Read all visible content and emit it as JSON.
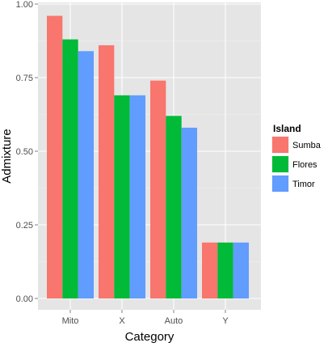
{
  "chart_data": {
    "type": "bar",
    "categories": [
      "Mito",
      "X",
      "Auto",
      "Y"
    ],
    "series": [
      {
        "name": "Sumba",
        "color": "#F8766D",
        "values": [
          0.96,
          0.86,
          0.74,
          0.19
        ]
      },
      {
        "name": "Flores",
        "color": "#00BA38",
        "values": [
          0.88,
          0.69,
          0.62,
          0.19
        ]
      },
      {
        "name": "Timor",
        "color": "#619CFF",
        "values": [
          0.84,
          0.69,
          0.58,
          0.19
        ]
      }
    ],
    "xlabel": "Category",
    "ylabel": "Admixture",
    "ylim": [
      0,
      1.0
    ],
    "yticks": [
      0.0,
      0.25,
      0.5,
      0.75,
      1.0
    ],
    "ytick_labels": [
      "0.00",
      "0.25",
      "0.50",
      "0.75",
      "1.00"
    ],
    "legend_title": "Island",
    "legend_position": "right",
    "grid": true,
    "panel_background": "#E5E5E5",
    "grid_color": "#FFFFFF"
  }
}
